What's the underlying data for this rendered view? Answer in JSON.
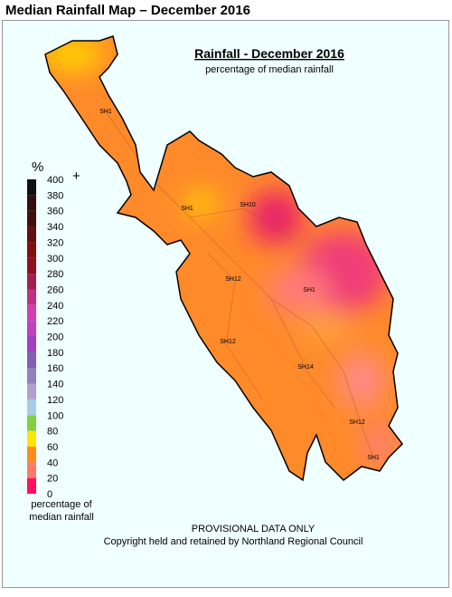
{
  "title": "Median Rainfall Map – December 2016",
  "map": {
    "title": "Rainfall - December 2016",
    "subtitle": "percentage of median rainfall",
    "road_labels": [
      "SH1",
      "SH1",
      "SH10",
      "SH12",
      "SH1",
      "SH12",
      "SH14",
      "SH12",
      "SH1"
    ],
    "notice": "PROVISIONAL DATA ONLY",
    "copyright": "Copyright held and retained by Northland Regional Council"
  },
  "legend": {
    "unit": "%",
    "overflow": "+",
    "ticks": [
      0,
      20,
      40,
      60,
      80,
      100,
      120,
      140,
      160,
      180,
      200,
      220,
      240,
      260,
      280,
      300,
      320,
      340,
      360,
      380,
      400
    ],
    "colors": [
      "#ff1060",
      "#ff7a6a",
      "#ff8c1a",
      "#ffe600",
      "#80d040",
      "#a8cce8",
      "#b0a0d0",
      "#9080c0",
      "#8060b0",
      "#a040c0",
      "#c040c0",
      "#d040b0",
      "#c03080",
      "#a02050",
      "#901020",
      "#801010",
      "#601010",
      "#401010",
      "#301010",
      "#101010"
    ],
    "caption": [
      "percentage of",
      "median rainfall"
    ]
  }
}
